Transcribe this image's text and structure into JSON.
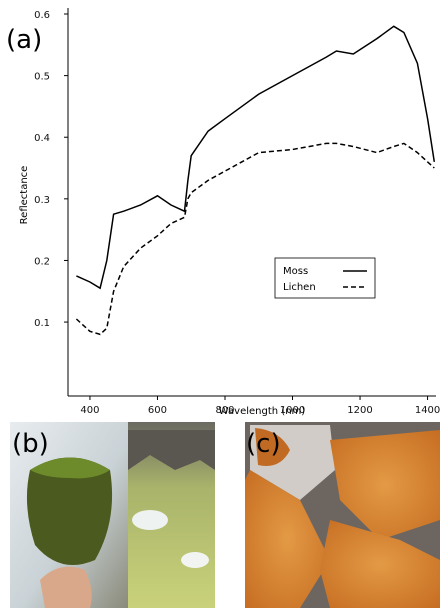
{
  "chart_data": {
    "type": "line",
    "x_label": "Wavelength (nm)",
    "y_label": "Reflectance",
    "x": [
      360,
      400,
      430,
      450,
      470,
      500,
      550,
      600,
      640,
      680,
      690,
      700,
      750,
      800,
      900,
      1000,
      1100,
      1130,
      1180,
      1250,
      1300,
      1330,
      1370,
      1400,
      1420
    ],
    "series": [
      {
        "name": "Moss",
        "color": "#000000",
        "dash": "solid",
        "values": [
          0.175,
          0.165,
          0.155,
          0.2,
          0.275,
          0.28,
          0.29,
          0.305,
          0.29,
          0.28,
          0.33,
          0.37,
          0.41,
          0.43,
          0.47,
          0.5,
          0.53,
          0.54,
          0.535,
          0.56,
          0.58,
          0.57,
          0.52,
          0.43,
          0.36
        ]
      },
      {
        "name": "Lichen",
        "color": "#000000",
        "dash": "dashed",
        "values": [
          0.105,
          0.085,
          0.08,
          0.09,
          0.15,
          0.19,
          0.22,
          0.24,
          0.26,
          0.27,
          0.3,
          0.31,
          0.33,
          0.345,
          0.375,
          0.38,
          0.39,
          0.39,
          0.385,
          0.375,
          0.385,
          0.39,
          0.375,
          0.36,
          0.35
        ]
      }
    ],
    "xlim": [
      335,
      1425
    ],
    "xticks": [
      400,
      600,
      800,
      1000,
      1200,
      1400
    ],
    "ylim": [
      -0.02,
      0.6
    ],
    "yticks": [
      0.1,
      0.2,
      0.3,
      0.4,
      0.5,
      0.6
    ],
    "legend": "lower-right"
  },
  "panels": {
    "a": "(a)",
    "b": "(b)",
    "c": "(c)"
  }
}
